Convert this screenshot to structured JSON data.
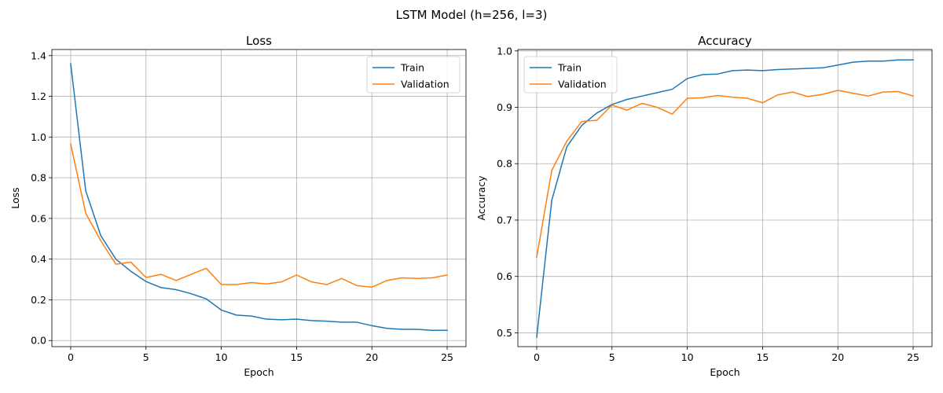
{
  "figure": {
    "suptitle": "LSTM Model (h=256, l=3)"
  },
  "chart_data": [
    {
      "type": "line",
      "title": "Loss",
      "xlabel": "Epoch",
      "ylabel": "Loss",
      "xlim": [
        -1.25,
        26.25
      ],
      "ylim": [
        -0.03,
        1.43
      ],
      "xticks": [
        0,
        5,
        10,
        15,
        20,
        25
      ],
      "yticks": [
        0.0,
        0.2,
        0.4,
        0.6,
        0.8,
        1.0,
        1.2,
        1.4
      ],
      "ytick_labels": [
        "0.0",
        "0.2",
        "0.4",
        "0.6",
        "0.8",
        "1.0",
        "1.2",
        "1.4"
      ],
      "grid": true,
      "legend": "upper right",
      "x": [
        0,
        1,
        2,
        3,
        4,
        5,
        6,
        7,
        8,
        9,
        10,
        11,
        12,
        13,
        14,
        15,
        16,
        17,
        18,
        19,
        20,
        21,
        22,
        23,
        24,
        25
      ],
      "series": [
        {
          "name": "Train",
          "color": "#1f77b4",
          "values": [
            1.36,
            0.735,
            0.515,
            0.4,
            0.34,
            0.29,
            0.26,
            0.25,
            0.23,
            0.205,
            0.15,
            0.125,
            0.12,
            0.105,
            0.102,
            0.105,
            0.098,
            0.095,
            0.09,
            0.09,
            0.073,
            0.06,
            0.055,
            0.055,
            0.05,
            0.05
          ]
        },
        {
          "name": "Validation",
          "color": "#ff7f0e",
          "values": [
            0.965,
            0.625,
            0.49,
            0.375,
            0.385,
            0.31,
            0.325,
            0.295,
            0.325,
            0.355,
            0.275,
            0.275,
            0.285,
            0.278,
            0.288,
            0.322,
            0.288,
            0.275,
            0.305,
            0.27,
            0.262,
            0.295,
            0.308,
            0.305,
            0.308,
            0.322
          ]
        }
      ]
    },
    {
      "type": "line",
      "title": "Accuracy",
      "xlabel": "Epoch",
      "ylabel": "Accuracy",
      "xlim": [
        -1.25,
        26.25
      ],
      "ylim": [
        0.4755,
        1.0025
      ],
      "xticks": [
        0,
        5,
        10,
        15,
        20,
        25
      ],
      "yticks": [
        0.5,
        0.6,
        0.7,
        0.8,
        0.9,
        1.0
      ],
      "ytick_labels": [
        "0.5",
        "0.6",
        "0.7",
        "0.8",
        "0.9",
        "1.0"
      ],
      "grid": true,
      "legend": "upper left",
      "x": [
        0,
        1,
        2,
        3,
        4,
        5,
        6,
        7,
        8,
        9,
        10,
        11,
        12,
        13,
        14,
        15,
        16,
        17,
        18,
        19,
        20,
        21,
        22,
        23,
        24,
        25
      ],
      "series": [
        {
          "name": "Train",
          "color": "#1f77b4",
          "values": [
            0.492,
            0.735,
            0.83,
            0.868,
            0.89,
            0.905,
            0.914,
            0.92,
            0.926,
            0.932,
            0.951,
            0.958,
            0.959,
            0.965,
            0.966,
            0.965,
            0.967,
            0.968,
            0.969,
            0.97,
            0.975,
            0.98,
            0.982,
            0.982,
            0.984,
            0.984
          ]
        },
        {
          "name": "Validation",
          "color": "#ff7f0e",
          "values": [
            0.634,
            0.788,
            0.84,
            0.875,
            0.877,
            0.904,
            0.895,
            0.907,
            0.9,
            0.888,
            0.916,
            0.917,
            0.921,
            0.918,
            0.916,
            0.908,
            0.922,
            0.927,
            0.919,
            0.923,
            0.93,
            0.925,
            0.92,
            0.927,
            0.928,
            0.92
          ]
        }
      ]
    }
  ]
}
